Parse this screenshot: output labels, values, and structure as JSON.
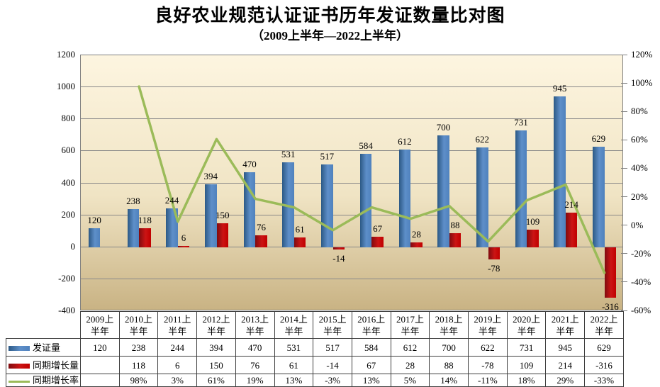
{
  "chart_data": {
    "type": "combo-bar-line",
    "title": "良好农业规范认证证书历年发证数量比对图",
    "subtitle": "（2009上半年—2022上半年）",
    "categories": [
      {
        "top": "2009上",
        "bottom": "半年"
      },
      {
        "top": "2010上",
        "bottom": "半年"
      },
      {
        "top": "2011上",
        "bottom": "半年"
      },
      {
        "top": "2012上",
        "bottom": "半年"
      },
      {
        "top": "2013上",
        "bottom": "半年"
      },
      {
        "top": "2014上",
        "bottom": "半年"
      },
      {
        "top": "2015上",
        "bottom": "半年"
      },
      {
        "top": "2016上",
        "bottom": "半年"
      },
      {
        "top": "2017上",
        "bottom": "半年"
      },
      {
        "top": "2018上",
        "bottom": "半年"
      },
      {
        "top": "2019上",
        "bottom": "半年"
      },
      {
        "top": "2020上",
        "bottom": "半年"
      },
      {
        "top": "2021上",
        "bottom": "半年"
      },
      {
        "top": "2022上",
        "bottom": "半年"
      }
    ],
    "series": [
      {
        "name": "发证量",
        "kind": "bar",
        "axis": "left",
        "values": [
          120,
          238,
          244,
          394,
          470,
          531,
          517,
          584,
          612,
          700,
          622,
          731,
          945,
          629
        ],
        "labels": [
          "120",
          "238",
          "244",
          "394",
          "470",
          "531",
          "517",
          "584",
          "612",
          "700",
          "622",
          "731",
          "945",
          "629"
        ]
      },
      {
        "name": "同期增长量",
        "kind": "bar",
        "axis": "left",
        "values": [
          null,
          118,
          6,
          150,
          76,
          61,
          -14,
          67,
          28,
          88,
          -78,
          109,
          214,
          -316
        ],
        "labels": [
          "",
          "118",
          "6",
          "150",
          "76",
          "61",
          "-14",
          "67",
          "28",
          "88",
          "-78",
          "109",
          "214",
          "-316"
        ]
      },
      {
        "name": "同期增长率",
        "kind": "line",
        "axis": "right",
        "values": [
          null,
          98,
          3,
          61,
          19,
          13,
          -3,
          13,
          5,
          14,
          -11,
          18,
          29,
          -33
        ],
        "labels": [
          "",
          "98%",
          "3%",
          "61%",
          "19%",
          "13%",
          "-3%",
          "13%",
          "5%",
          "14%",
          "-11%",
          "18%",
          "29%",
          "-33%"
        ]
      }
    ],
    "left_axis": {
      "min": -400,
      "max": 1200,
      "ticks": [
        1200,
        1000,
        800,
        600,
        400,
        200,
        0,
        -200,
        -400
      ]
    },
    "right_axis": {
      "min": -60,
      "max": 120,
      "ticks": [
        "120%",
        "100%",
        "80%",
        "60%",
        "40%",
        "20%",
        "0%",
        "-20%",
        "-40%",
        "-60%"
      ]
    },
    "grid": true,
    "legend_position": "table-left",
    "colors": {
      "blue": "#4F81BD",
      "blue_edge": "#2C5985",
      "blue_light": "#5E8FC9",
      "red": "#C00000",
      "red_edge": "#7F0C10",
      "red_light": "#CC1414",
      "green": "#9BBB59",
      "plot_top": "#FDF5E0",
      "plot_mid": "#F0E4C4",
      "plot_bottom": "#C9B384",
      "gridline": "#898989",
      "plot_border": "#808080",
      "table_border": "#3F3F3F",
      "text": "#000000"
    }
  }
}
